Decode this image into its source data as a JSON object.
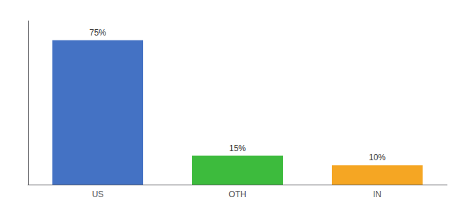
{
  "chart_data": {
    "type": "bar",
    "categories": [
      "US",
      "OTH",
      "IN"
    ],
    "values": [
      75,
      15,
      10
    ],
    "value_labels": [
      "75%",
      "15%",
      "10%"
    ],
    "data_labels": true,
    "colors": [
      "#4472c4",
      "#3dbb3d",
      "#f5a623"
    ],
    "ylim": [
      0,
      85
    ],
    "grid": false,
    "tick_labels": "x"
  }
}
